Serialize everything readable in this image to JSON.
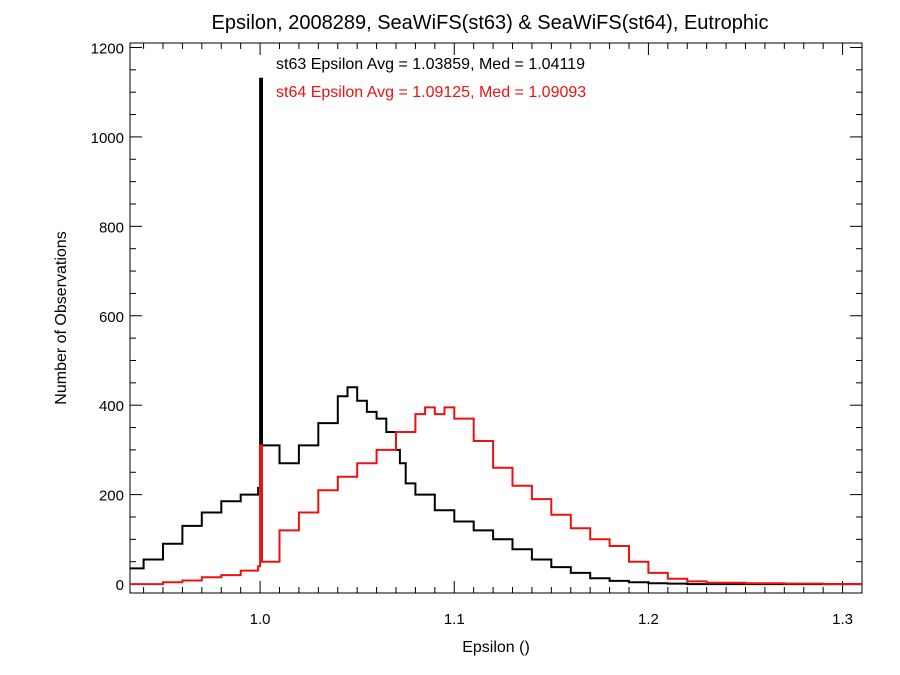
{
  "chart_data": {
    "type": "line",
    "title": "Epsilon, 2008289, SeaWiFS(st63) & SeaWiFS(st64), Eutrophic",
    "xlabel": "Epsilon ()",
    "ylabel": "Number of Observations",
    "xlim": [
      0.933,
      1.31
    ],
    "ylim": [
      -20,
      1210
    ],
    "xticks": [
      1.0,
      1.1,
      1.2,
      1.3
    ],
    "xtick_labels": [
      "1.0",
      "1.1",
      "1.2",
      "1.3"
    ],
    "yticks": [
      0,
      200,
      400,
      600,
      800,
      1000,
      1200
    ],
    "ytick_labels": [
      "0",
      "200",
      "400",
      "600",
      "800",
      "1000",
      "1200"
    ],
    "grid": false,
    "legend": "top-center",
    "series": [
      {
        "name": "st63",
        "color": "#000000",
        "annotation": "st63 Epsilon Avg = 1.03859, Med = 1.04119",
        "x": [
          0.933,
          0.94,
          0.95,
          0.96,
          0.97,
          0.98,
          0.99,
          0.999,
          1.0,
          1.001,
          1.01,
          1.02,
          1.03,
          1.04,
          1.045,
          1.05,
          1.055,
          1.06,
          1.065,
          1.07,
          1.072,
          1.075,
          1.08,
          1.09,
          1.1,
          1.11,
          1.12,
          1.13,
          1.14,
          1.15,
          1.16,
          1.17,
          1.18,
          1.19,
          1.2,
          1.21,
          1.22,
          1.25,
          1.3,
          1.31
        ],
        "y": [
          35,
          55,
          90,
          130,
          160,
          185,
          200,
          215,
          1130,
          310,
          270,
          310,
          360,
          420,
          440,
          410,
          385,
          370,
          340,
          300,
          270,
          225,
          200,
          165,
          140,
          120,
          100,
          78,
          55,
          38,
          25,
          13,
          7,
          4,
          2,
          1,
          0,
          0,
          0,
          0
        ]
      },
      {
        "name": "st64",
        "color": "#ee1111",
        "annotation": "st64 Epsilon Avg = 1.09125, Med = 1.09093",
        "x": [
          0.933,
          0.95,
          0.96,
          0.97,
          0.98,
          0.99,
          0.999,
          1.0,
          1.001,
          1.01,
          1.02,
          1.03,
          1.04,
          1.05,
          1.06,
          1.07,
          1.08,
          1.085,
          1.09,
          1.095,
          1.1,
          1.11,
          1.12,
          1.13,
          1.14,
          1.15,
          1.16,
          1.17,
          1.18,
          1.19,
          1.2,
          1.21,
          1.22,
          1.23,
          1.25,
          1.27,
          1.29,
          1.31
        ],
        "y": [
          0,
          4,
          8,
          15,
          20,
          30,
          40,
          310,
          50,
          120,
          160,
          210,
          240,
          270,
          300,
          340,
          380,
          395,
          380,
          395,
          370,
          320,
          260,
          220,
          190,
          155,
          125,
          100,
          85,
          50,
          25,
          12,
          6,
          3,
          2,
          1,
          0,
          0
        ]
      }
    ]
  }
}
